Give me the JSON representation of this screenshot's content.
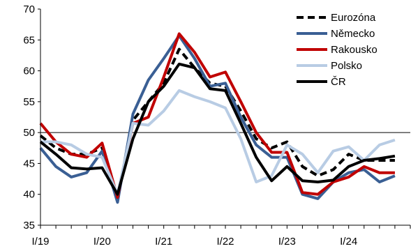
{
  "chart_data": {
    "type": "line",
    "x": [
      "I/19",
      "II/19",
      "III/19",
      "IV/19",
      "I/20",
      "II/20",
      "III/20",
      "IV/20",
      "I/21",
      "II/21",
      "III/21",
      "IV/21",
      "I/22",
      "II/22",
      "III/22",
      "IV/22",
      "I/23",
      "II/23",
      "III/23",
      "IV/23",
      "I/24",
      "II/24",
      "III/24",
      "IV/24"
    ],
    "xticks": [
      "I/19",
      "I/20",
      "I/21",
      "I/22",
      "I/23",
      "I/24"
    ],
    "ylim": [
      35,
      70
    ],
    "yticks": [
      35,
      40,
      45,
      50,
      55,
      60,
      65,
      70
    ],
    "reference_line": 50,
    "grid": false,
    "legend_position": "top-right",
    "series": [
      {
        "name": "Eurozóna",
        "color": "#000000",
        "dash": true,
        "values": [
          49.5,
          47.5,
          46.5,
          46.5,
          47.5,
          39.5,
          52.0,
          55.0,
          58.0,
          63.5,
          60.5,
          58.0,
          57.5,
          53.5,
          49.0,
          47.5,
          48.5,
          44.5,
          43.0,
          44.0,
          46.5,
          45.5,
          45.5,
          45.5
        ]
      },
      {
        "name": "Německo",
        "color": "#3A5F94",
        "dash": false,
        "values": [
          47.5,
          44.5,
          42.8,
          43.5,
          47.0,
          38.7,
          53.0,
          58.5,
          62.0,
          65.7,
          62.0,
          57.5,
          58.0,
          52.5,
          48.0,
          46.0,
          46.0,
          40.0,
          39.3,
          42.0,
          43.5,
          44.0,
          42.0,
          43.0
        ]
      },
      {
        "name": "Rakousko",
        "color": "#C00000",
        "dash": false,
        "values": [
          51.5,
          48.5,
          46.5,
          46.0,
          48.3,
          39.5,
          51.5,
          52.5,
          59.0,
          66.0,
          63.0,
          59.0,
          59.8,
          55.0,
          50.0,
          46.8,
          46.8,
          40.3,
          40.0,
          42.0,
          42.8,
          44.5,
          43.5,
          43.5
        ]
      },
      {
        "name": "Polsko",
        "color": "#B8CCE4",
        "dash": false,
        "values": [
          48.5,
          48.5,
          48.0,
          46.5,
          46.0,
          40.0,
          51.5,
          51.2,
          53.5,
          56.8,
          55.8,
          55.0,
          54.0,
          49.0,
          42.0,
          43.0,
          48.0,
          46.5,
          43.5,
          47.0,
          47.7,
          45.5,
          48.0,
          48.8
        ]
      },
      {
        "name": "ČR",
        "color": "#000000",
        "dash": false,
        "values": [
          48.5,
          46.5,
          44.3,
          44.1,
          44.3,
          40.0,
          49.0,
          55.0,
          57.5,
          61.1,
          60.5,
          57.1,
          56.8,
          51.5,
          46.0,
          42.2,
          44.5,
          42.2,
          42.0,
          42.3,
          44.5,
          45.5,
          45.8,
          46.2
        ]
      }
    ]
  }
}
